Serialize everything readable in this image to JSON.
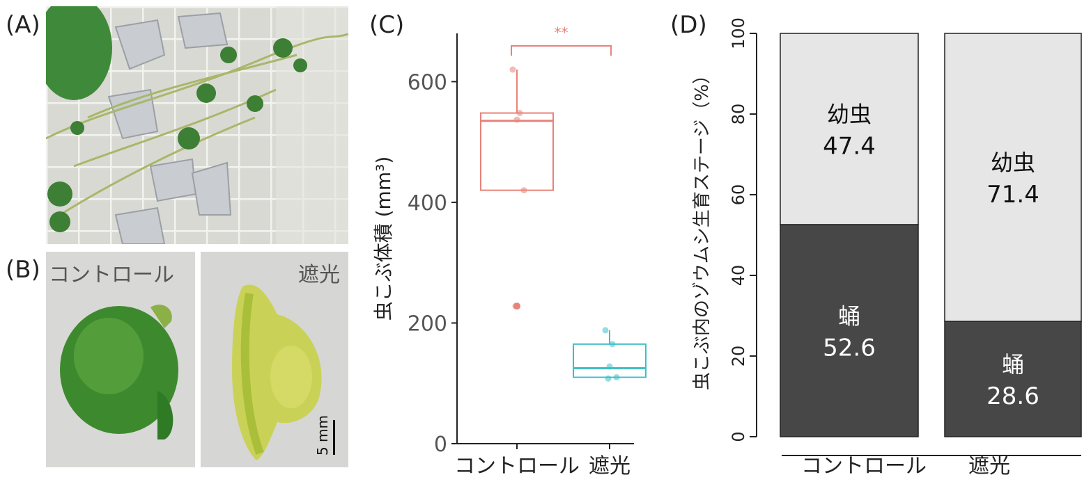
{
  "panels": {
    "a": {
      "letter": "(A)"
    },
    "b": {
      "letter": "(B)",
      "label_left": "コントロール",
      "label_right": "遮光",
      "scale_bar": "5 mm"
    },
    "c": {
      "letter": "(C)"
    },
    "d": {
      "letter": "(D)"
    }
  },
  "colors": {
    "control": "#e8837a",
    "shade": "#3fbfc6",
    "larva": "#e6e6e6",
    "pupa": "#474747"
  },
  "chart_data": [
    {
      "type": "box",
      "panel": "C",
      "ylabel": "虫こぶ体積 (mm³)",
      "ylim": [
        0,
        680
      ],
      "yticks": [
        0,
        200,
        400,
        600
      ],
      "categories": [
        "コントロール",
        "遮光"
      ],
      "significance": "**",
      "boxes": [
        {
          "name": "コントロール",
          "q1": 420,
          "median": 535,
          "q3": 548,
          "whisker_low": 420,
          "whisker_high": 620,
          "points": [
            620,
            548,
            537,
            420,
            228
          ],
          "outliers": [
            228
          ]
        },
        {
          "name": "遮光",
          "q1": 110,
          "median": 125,
          "q3": 165,
          "whisker_low": 110,
          "whisker_high": 188,
          "points": [
            188,
            165,
            128,
            110,
            108
          ],
          "outliers": []
        }
      ]
    },
    {
      "type": "bar",
      "stacked": true,
      "panel": "D",
      "ylabel": "虫こぶ内のゾウムシ生育ステージ（%）",
      "ylim": [
        0,
        100
      ],
      "yticks": [
        0,
        20,
        40,
        60,
        80,
        100
      ],
      "categories": [
        "コントロール",
        "遮光"
      ],
      "series": [
        {
          "name": "蛹",
          "values": [
            52.6,
            28.6
          ]
        },
        {
          "name": "幼虫",
          "values": [
            47.4,
            71.4
          ]
        }
      ],
      "value_labels": [
        [
          "52.6",
          "28.6"
        ],
        [
          "47.4",
          "71.4"
        ]
      ]
    }
  ]
}
